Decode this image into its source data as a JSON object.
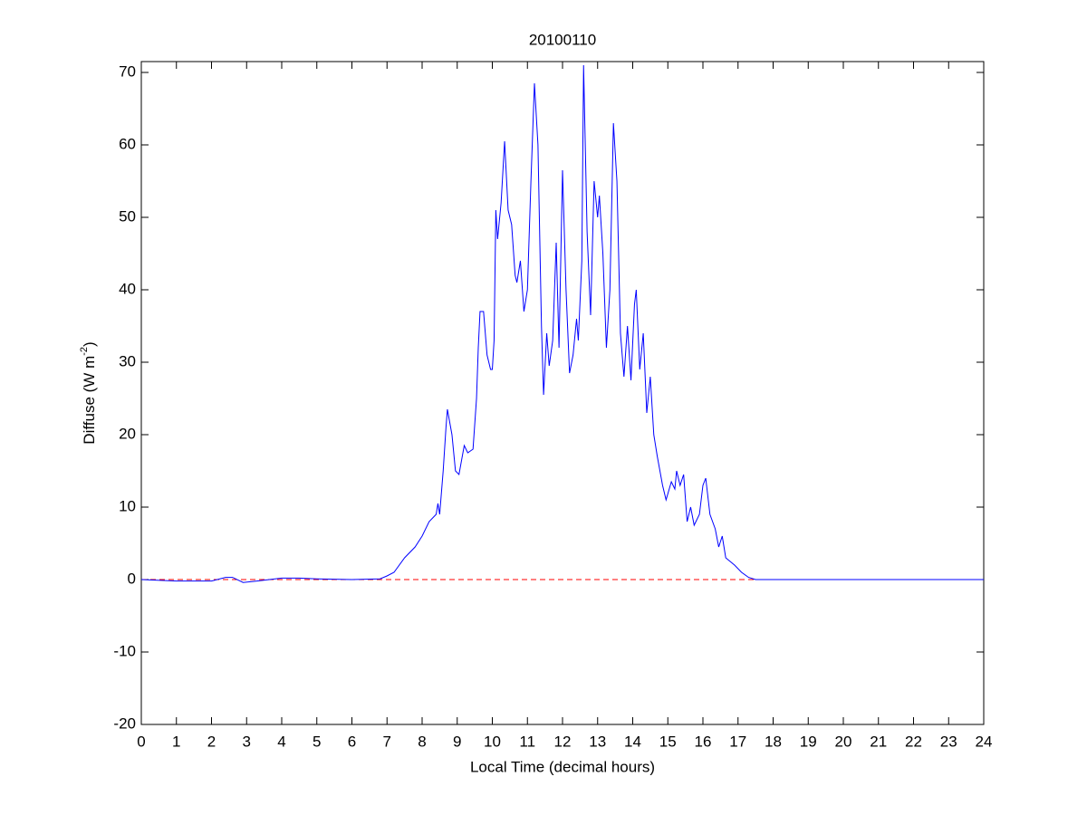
{
  "chart_data": {
    "type": "line",
    "title": "20100110",
    "xlabel": "Local Time (decimal hours)",
    "ylabel": [
      "Diffuse (W m",
      "-2",
      ")"
    ],
    "xlim": [
      0,
      24
    ],
    "ylim": [
      -20,
      71.5
    ],
    "xticks": [
      0,
      1,
      2,
      3,
      4,
      5,
      6,
      7,
      8,
      9,
      10,
      11,
      12,
      13,
      14,
      15,
      16,
      17,
      18,
      19,
      20,
      21,
      22,
      23,
      24
    ],
    "yticks": [
      -20,
      -10,
      0,
      10,
      20,
      30,
      40,
      50,
      60,
      70
    ],
    "reference_line": {
      "value": 0,
      "color": "#ff0000",
      "style": "dashed"
    },
    "series": [
      {
        "color": "#0000ff",
        "x": [
          0,
          1,
          2,
          2.4,
          2.6,
          2.9,
          3.3,
          4,
          4.5,
          5,
          6,
          6.8,
          7.0,
          7.2,
          7.5,
          7.8,
          8.0,
          8.2,
          8.4,
          8.45,
          8.5,
          8.6,
          8.68,
          8.72,
          8.85,
          8.95,
          9.05,
          9.2,
          9.3,
          9.45,
          9.55,
          9.6,
          9.65,
          9.75,
          9.85,
          9.95,
          10.0,
          10.05,
          10.1,
          10.15,
          10.25,
          10.35,
          10.45,
          10.55,
          10.65,
          10.7,
          10.8,
          10.9,
          11.0,
          11.1,
          11.2,
          11.3,
          11.4,
          11.46,
          11.55,
          11.62,
          11.72,
          11.82,
          11.9,
          12.0,
          12.1,
          12.2,
          12.3,
          12.4,
          12.45,
          12.55,
          12.6,
          12.7,
          12.8,
          12.9,
          13.0,
          13.05,
          13.15,
          13.25,
          13.35,
          13.45,
          13.55,
          13.65,
          13.75,
          13.85,
          13.95,
          14.05,
          14.1,
          14.2,
          14.3,
          14.4,
          14.5,
          14.6,
          14.7,
          14.85,
          14.95,
          15.1,
          15.2,
          15.25,
          15.35,
          15.45,
          15.55,
          15.65,
          15.75,
          15.9,
          16.0,
          16.08,
          16.2,
          16.35,
          16.45,
          16.55,
          16.65,
          16.9,
          17.1,
          17.3,
          17.5,
          18,
          24
        ],
        "values": [
          0,
          -0.2,
          -0.2,
          0.3,
          0.3,
          -0.4,
          -0.2,
          0.2,
          0.2,
          0.1,
          0,
          0.1,
          0.5,
          1,
          3,
          4.5,
          6,
          8,
          9,
          10.5,
          9,
          15,
          21,
          23.5,
          20,
          15,
          14.5,
          18.5,
          17.5,
          18,
          25,
          32,
          37,
          37,
          31,
          29,
          29,
          33,
          51,
          47,
          52,
          60.5,
          51,
          49,
          42,
          41,
          44,
          37,
          40,
          55,
          68.5,
          60,
          35,
          25.5,
          34,
          29.5,
          33,
          46.5,
          32,
          56.5,
          40,
          28.5,
          31,
          36,
          33,
          44,
          71,
          48,
          36.5,
          55,
          50,
          53,
          45,
          32,
          40,
          63,
          55,
          34,
          28,
          35,
          27.5,
          38,
          40,
          29,
          34,
          23,
          28,
          20,
          17,
          13,
          11,
          13.5,
          12.5,
          15,
          13,
          14.5,
          8,
          10,
          7.5,
          9,
          13,
          14,
          9,
          7,
          4.5,
          6,
          3,
          2,
          1,
          0.3,
          0,
          0,
          0
        ]
      }
    ]
  }
}
